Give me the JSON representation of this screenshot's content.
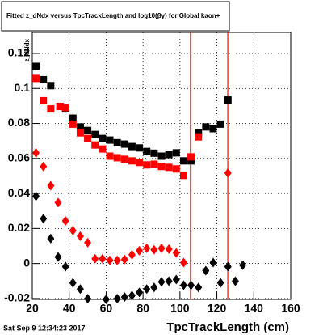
{
  "chart_data": {
    "type": "scatter",
    "title": "Fitted z_dNdx versus TpcTrackLength and log10(βγ) for Global kaon+",
    "y_label": "z_dNdx",
    "x_label": "TpcTrackLength (cm)",
    "footer": "Sat Sep  9 12:34:23 2017",
    "xlim": [
      20,
      160
    ],
    "ylim": [
      -0.0205,
      0.132
    ],
    "xticks": [
      20,
      40,
      60,
      80,
      100,
      120,
      140,
      160
    ],
    "yticks": [
      -0.02,
      0,
      0.02,
      0.04,
      0.06,
      0.08,
      0.1,
      0.12
    ],
    "grid": true,
    "vlines": {
      "color": "#ff0000",
      "x": [
        105.7,
        125.9
      ]
    },
    "series": [
      {
        "marker": "square",
        "color": "#000000",
        "x": [
          22,
          26,
          30,
          35,
          38,
          42,
          46,
          50,
          54,
          58,
          62,
          66,
          70,
          74,
          78,
          82,
          86,
          90,
          94,
          98,
          102,
          106,
          110,
          114,
          118,
          122,
          126
        ],
        "values": [
          0.1126,
          0.105,
          0.1016,
          0.0897,
          0.0883,
          0.083,
          0.078,
          0.076,
          0.0737,
          0.0714,
          0.0705,
          0.069,
          0.0682,
          0.0668,
          0.066,
          0.064,
          0.063,
          0.0613,
          0.0622,
          0.0632,
          0.0586,
          0.0586,
          0.0746,
          0.078,
          0.077,
          0.0796,
          0.0934
        ]
      },
      {
        "marker": "square",
        "color": "#ff0000",
        "x": [
          22,
          26,
          30,
          35,
          38,
          42,
          46,
          50,
          54,
          58,
          62,
          66,
          70,
          74,
          78,
          82,
          86,
          90,
          94,
          98,
          102,
          106,
          110
        ],
        "values": [
          0.1057,
          0.093,
          0.0883,
          0.0897,
          0.089,
          0.0796,
          0.0746,
          0.0714,
          0.0677,
          0.0654,
          0.0613,
          0.0604,
          0.0595,
          0.0586,
          0.0577,
          0.0563,
          0.0567,
          0.0554,
          0.0549,
          0.054,
          0.0503,
          0.0609,
          0.0723
        ]
      },
      {
        "marker": "diamond",
        "color": "#ff0000",
        "x": [
          22,
          26,
          30,
          34,
          38,
          42,
          46,
          50,
          54,
          58,
          62,
          66,
          70,
          74,
          78,
          82,
          86,
          90,
          94,
          98,
          102,
          126
        ],
        "values": [
          0.0632,
          0.0554,
          0.0444,
          0.0348,
          0.0243,
          0.0188,
          0.0156,
          0.0119,
          0.0027,
          0.0027,
          0.0018,
          0.0018,
          0.0023,
          0.005,
          0.0073,
          0.0087,
          0.0078,
          0.0087,
          0.0082,
          0.006,
          0.0005,
          0.0517
        ]
      },
      {
        "marker": "diamond",
        "color": "#000000",
        "x": [
          22,
          26,
          30,
          34,
          38,
          42,
          46,
          50,
          60,
          66,
          70,
          74,
          78,
          82,
          86,
          90,
          94,
          98,
          102,
          106,
          110,
          114,
          118,
          122,
          126,
          130,
          134
        ],
        "values": [
          0.0384,
          0.0256,
          0.0142,
          0.0037,
          -0.0018,
          -0.011,
          -0.0146,
          -0.0201,
          -0.0205,
          -0.0201,
          -0.0192,
          -0.0183,
          -0.0165,
          -0.0146,
          -0.0137,
          -0.0105,
          -0.0101,
          -0.0092,
          -0.0124,
          -0.0124,
          -0.0137,
          -0.0041,
          0.0005,
          -0.011,
          -0.0018,
          -0.0101,
          -0.0009
        ]
      }
    ]
  }
}
